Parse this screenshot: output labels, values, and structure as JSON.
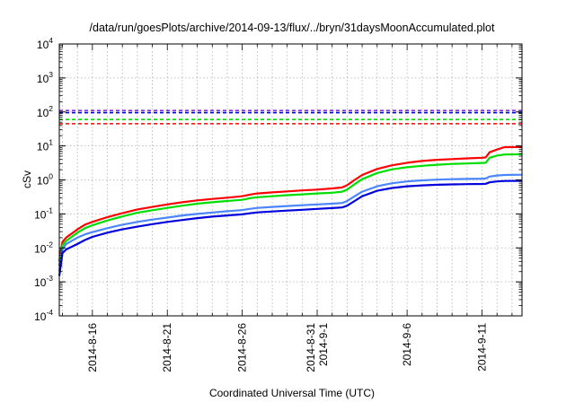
{
  "chart_data": {
    "type": "line",
    "title": "/data/run/goesPlots/archive/2014-09-13/flux/../bryn/31daysMoonAccumulated.plot",
    "xlabel": "Coordinated Universal Time (UTC)",
    "ylabel": "cSv",
    "y_scale": "log",
    "ylim": [
      0.0001,
      10000
    ],
    "xlim": [
      "2014-08-13T19:00",
      "2014-09-13T16:00"
    ],
    "y_tick_labels": [
      {
        "value": 0.0001,
        "base": "10",
        "exp": "-4"
      },
      {
        "value": 0.001,
        "base": "10",
        "exp": "-3"
      },
      {
        "value": 0.01,
        "base": "10",
        "exp": "-2"
      },
      {
        "value": 0.1,
        "base": "10",
        "exp": "-1"
      },
      {
        "value": 1,
        "base": "10",
        "exp": "0"
      },
      {
        "value": 10,
        "base": "10",
        "exp": "1"
      },
      {
        "value": 100,
        "base": "10",
        "exp": "2"
      },
      {
        "value": 1000,
        "base": "10",
        "exp": "3"
      },
      {
        "value": 10000,
        "base": "10",
        "exp": "4"
      }
    ],
    "x_ticks": [
      {
        "date": "2014-08-16",
        "lines": [
          "2014-8-16"
        ]
      },
      {
        "date": "2014-08-21",
        "lines": [
          "2014-8-21"
        ]
      },
      {
        "date": "2014-08-26",
        "lines": [
          "2014-8-26"
        ]
      },
      {
        "date": "2014-08-31",
        "lines": [
          "2014-8-31",
          "2014-9-1"
        ]
      },
      {
        "date": "2014-09-06",
        "lines": [
          "2014-9-6"
        ]
      },
      {
        "date": "2014-09-11",
        "lines": [
          "2014-9-11"
        ]
      }
    ],
    "grid": true,
    "series": [
      {
        "color": "#ff0000",
        "x": [
          "2014-08-13T19:00",
          "2014-08-14T00:00",
          "2014-08-14T06:00",
          "2014-08-15T00:00",
          "2014-08-15T12:00",
          "2014-08-16T00:00",
          "2014-08-17T00:00",
          "2014-08-18T00:00",
          "2014-08-19T00:00",
          "2014-08-20T00:00",
          "2014-08-21T00:00",
          "2014-08-22T00:00",
          "2014-08-23T00:00",
          "2014-08-24T00:00",
          "2014-08-25T00:00",
          "2014-08-26T00:00",
          "2014-08-26T12:00",
          "2014-08-27T00:00",
          "2014-08-28T00:00",
          "2014-08-29T00:00",
          "2014-08-30T00:00",
          "2014-08-31T00:00",
          "2014-09-01T00:00",
          "2014-09-01T16:00",
          "2014-09-02T00:00",
          "2014-09-02T12:00",
          "2014-09-03T00:00",
          "2014-09-04T00:00",
          "2014-09-05T00:00",
          "2014-09-06T00:00",
          "2014-09-07T00:00",
          "2014-09-08T00:00",
          "2014-09-09T00:00",
          "2014-09-10T00:00",
          "2014-09-11T00:00",
          "2014-09-11T06:00",
          "2014-09-11T12:00",
          "2014-09-12T00:00",
          "2014-09-12T12:00",
          "2014-09-13T16:00"
        ],
        "y": [
          0.004,
          0.015,
          0.02,
          0.035,
          0.048,
          0.058,
          0.08,
          0.105,
          0.135,
          0.16,
          0.19,
          0.22,
          0.25,
          0.275,
          0.3,
          0.33,
          0.37,
          0.4,
          0.43,
          0.46,
          0.49,
          0.52,
          0.56,
          0.6,
          0.7,
          1.0,
          1.4,
          2.1,
          2.7,
          3.2,
          3.6,
          3.9,
          4.1,
          4.3,
          4.5,
          4.6,
          6.5,
          7.8,
          9.2,
          9.3
        ]
      },
      {
        "color": "#00dd00",
        "x": [
          "2014-08-13T19:00",
          "2014-08-14T00:00",
          "2014-08-14T06:00",
          "2014-08-15T00:00",
          "2014-08-15T12:00",
          "2014-08-16T00:00",
          "2014-08-17T00:00",
          "2014-08-18T00:00",
          "2014-08-19T00:00",
          "2014-08-20T00:00",
          "2014-08-21T00:00",
          "2014-08-22T00:00",
          "2014-08-23T00:00",
          "2014-08-24T00:00",
          "2014-08-25T00:00",
          "2014-08-26T00:00",
          "2014-08-26T12:00",
          "2014-08-27T00:00",
          "2014-08-28T00:00",
          "2014-08-29T00:00",
          "2014-08-30T00:00",
          "2014-08-31T00:00",
          "2014-09-01T00:00",
          "2014-09-01T16:00",
          "2014-09-02T00:00",
          "2014-09-02T12:00",
          "2014-09-03T00:00",
          "2014-09-04T00:00",
          "2014-09-05T00:00",
          "2014-09-06T00:00",
          "2014-09-07T00:00",
          "2014-09-08T00:00",
          "2014-09-09T00:00",
          "2014-09-10T00:00",
          "2014-09-11T00:00",
          "2014-09-11T06:00",
          "2014-09-11T12:00",
          "2014-09-12T00:00",
          "2014-09-12T12:00",
          "2014-09-13T16:00"
        ],
        "y": [
          0.003,
          0.012,
          0.016,
          0.028,
          0.038,
          0.046,
          0.064,
          0.084,
          0.108,
          0.128,
          0.15,
          0.175,
          0.2,
          0.22,
          0.24,
          0.26,
          0.29,
          0.31,
          0.33,
          0.355,
          0.375,
          0.4,
          0.42,
          0.45,
          0.52,
          0.75,
          1.05,
          1.6,
          2.05,
          2.35,
          2.6,
          2.8,
          2.95,
          3.05,
          3.15,
          3.2,
          4.5,
          5.2,
          5.6,
          5.7
        ]
      },
      {
        "color": "#4a86ff",
        "x": [
          "2014-08-13T19:00",
          "2014-08-14T00:00",
          "2014-08-14T06:00",
          "2014-08-15T00:00",
          "2014-08-15T12:00",
          "2014-08-16T00:00",
          "2014-08-17T00:00",
          "2014-08-18T00:00",
          "2014-08-19T00:00",
          "2014-08-20T00:00",
          "2014-08-21T00:00",
          "2014-08-22T00:00",
          "2014-08-23T00:00",
          "2014-08-24T00:00",
          "2014-08-25T00:00",
          "2014-08-26T00:00",
          "2014-08-26T12:00",
          "2014-08-27T00:00",
          "2014-08-28T00:00",
          "2014-08-29T00:00",
          "2014-08-30T00:00",
          "2014-08-31T00:00",
          "2014-09-01T00:00",
          "2014-09-01T16:00",
          "2014-09-02T00:00",
          "2014-09-02T12:00",
          "2014-09-03T00:00",
          "2014-09-04T00:00",
          "2014-09-05T00:00",
          "2014-09-06T00:00",
          "2014-09-07T00:00",
          "2014-09-08T00:00",
          "2014-09-09T00:00",
          "2014-09-10T00:00",
          "2014-09-11T00:00",
          "2014-09-11T06:00",
          "2014-09-11T12:00",
          "2014-09-12T00:00",
          "2014-09-12T12:00",
          "2014-09-13T16:00"
        ],
        "y": [
          0.002,
          0.009,
          0.013,
          0.02,
          0.025,
          0.029,
          0.038,
          0.048,
          0.058,
          0.068,
          0.078,
          0.09,
          0.1,
          0.11,
          0.12,
          0.13,
          0.14,
          0.15,
          0.16,
          0.17,
          0.18,
          0.19,
          0.2,
          0.21,
          0.24,
          0.33,
          0.45,
          0.65,
          0.8,
          0.9,
          0.97,
          1.02,
          1.05,
          1.07,
          1.09,
          1.1,
          1.25,
          1.35,
          1.4,
          1.42
        ]
      },
      {
        "color": "#0000dd",
        "x": [
          "2014-08-13T19:00",
          "2014-08-14T00:00",
          "2014-08-14T06:00",
          "2014-08-15T00:00",
          "2014-08-15T12:00",
          "2014-08-16T00:00",
          "2014-08-17T00:00",
          "2014-08-18T00:00",
          "2014-08-19T00:00",
          "2014-08-20T00:00",
          "2014-08-21T00:00",
          "2014-08-22T00:00",
          "2014-08-23T00:00",
          "2014-08-24T00:00",
          "2014-08-25T00:00",
          "2014-08-26T00:00",
          "2014-08-26T12:00",
          "2014-08-27T00:00",
          "2014-08-28T00:00",
          "2014-08-29T00:00",
          "2014-08-30T00:00",
          "2014-08-31T00:00",
          "2014-09-01T00:00",
          "2014-09-01T16:00",
          "2014-09-02T00:00",
          "2014-09-02T12:00",
          "2014-09-03T00:00",
          "2014-09-04T00:00",
          "2014-09-05T00:00",
          "2014-09-06T00:00",
          "2014-09-07T00:00",
          "2014-09-08T00:00",
          "2014-09-09T00:00",
          "2014-09-10T00:00",
          "2014-09-11T00:00",
          "2014-09-11T06:00",
          "2014-09-11T12:00",
          "2014-09-12T00:00",
          "2014-09-12T12:00",
          "2014-09-13T16:00"
        ],
        "y": [
          0.0015,
          0.007,
          0.009,
          0.013,
          0.017,
          0.021,
          0.028,
          0.035,
          0.042,
          0.05,
          0.058,
          0.066,
          0.075,
          0.083,
          0.09,
          0.097,
          0.104,
          0.111,
          0.118,
          0.125,
          0.132,
          0.14,
          0.148,
          0.155,
          0.175,
          0.24,
          0.33,
          0.48,
          0.58,
          0.65,
          0.69,
          0.72,
          0.74,
          0.75,
          0.76,
          0.77,
          0.85,
          0.9,
          0.93,
          0.94
        ]
      }
    ],
    "reference_lines": [
      {
        "value": 110,
        "color": "#8a2be2"
      },
      {
        "value": 95,
        "color": "#0000dd"
      },
      {
        "value": 60,
        "color": "#00dd00"
      },
      {
        "value": 45,
        "color": "#ff0000"
      }
    ]
  }
}
